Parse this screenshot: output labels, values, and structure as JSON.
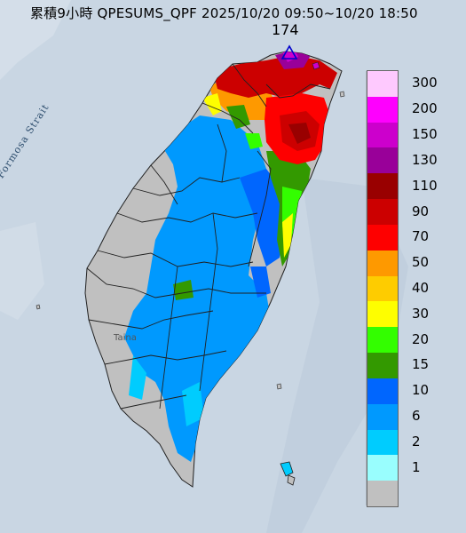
{
  "header": {
    "title": "累積9小時 QPESUMS_QPF 2025/10/20 09:50~10/20 18:50"
  },
  "max_value": "174",
  "map_labels": {
    "strait": "Formosa Strait",
    "city": "Taina"
  },
  "legend": {
    "items": [
      {
        "label": "300",
        "color": "#fec9fe"
      },
      {
        "label": "200",
        "color": "#fe00fe"
      },
      {
        "label": "150",
        "color": "#cc00cc"
      },
      {
        "label": "130",
        "color": "#990099"
      },
      {
        "label": "110",
        "color": "#990000"
      },
      {
        "label": "90",
        "color": "#cc0000"
      },
      {
        "label": "70",
        "color": "#fe0000"
      },
      {
        "label": "50",
        "color": "#fe9900"
      },
      {
        "label": "40",
        "color": "#fecc00"
      },
      {
        "label": "30",
        "color": "#fefe00"
      },
      {
        "label": "20",
        "color": "#33fe00"
      },
      {
        "label": "15",
        "color": "#339900"
      },
      {
        "label": "10",
        "color": "#0066fe"
      },
      {
        "label": "6",
        "color": "#0099fe"
      },
      {
        "label": "2",
        "color": "#00ccfe"
      },
      {
        "label": "1",
        "color": "#99fefe"
      },
      {
        "label": "",
        "color": "#c0c0c0"
      }
    ]
  },
  "colors": {
    "sea": "#c9d6e3",
    "land_dry": "#c0c0c0",
    "boundary": "#202020"
  }
}
